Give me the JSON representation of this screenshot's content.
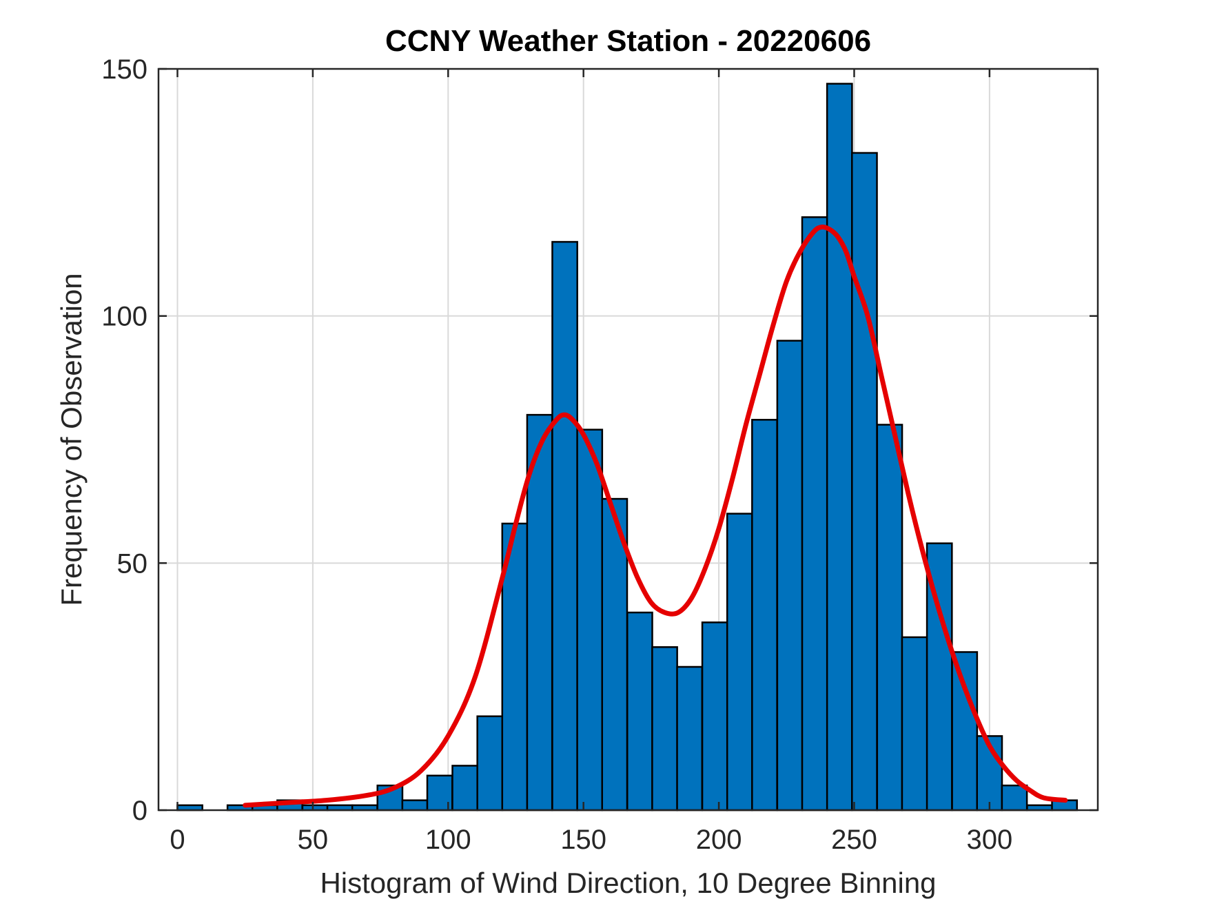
{
  "colors": {
    "bar": "#0072BD",
    "fit": "#E50000"
  },
  "chart_data": {
    "type": "bar",
    "title": "CCNY Weather Station - 20220606",
    "xlabel": "Histogram of Wind Direction, 10 Degree Binning",
    "ylabel": "Frequency of Observation",
    "xlim": [
      -7,
      340
    ],
    "ylim": [
      0,
      150
    ],
    "xticks": [
      0,
      50,
      100,
      150,
      200,
      250,
      300
    ],
    "yticks": [
      0,
      50,
      100,
      150
    ],
    "grid": true,
    "bin_width": 9.23,
    "bin_centers": [
      4.6,
      23.1,
      32.3,
      41.5,
      50.8,
      60.0,
      69.2,
      78.5,
      87.7,
      96.9,
      106.2,
      115.4,
      124.6,
      133.8,
      143.1,
      152.3,
      161.5,
      170.8,
      180.0,
      189.2,
      198.5,
      207.7,
      216.9,
      226.2,
      235.4,
      244.6,
      253.8,
      263.1,
      272.3,
      281.5,
      290.8,
      300.0,
      309.2,
      318.5,
      327.7
    ],
    "values": [
      1,
      1,
      1,
      2,
      1,
      1,
      1,
      5,
      2,
      7,
      9,
      19,
      58,
      80,
      115,
      77,
      63,
      40,
      33,
      29,
      38,
      60,
      79,
      95,
      120,
      147,
      133,
      78,
      35,
      54,
      32,
      15,
      5,
      1,
      2
    ],
    "fit_line": {
      "x": [
        25,
        40,
        55,
        70,
        80,
        90,
        100,
        110,
        120,
        125,
        130,
        135,
        140,
        143,
        146,
        150,
        155,
        160,
        165,
        170,
        175,
        180,
        185,
        190,
        195,
        200,
        205,
        210,
        215,
        220,
        225,
        230,
        235,
        238,
        241,
        244,
        247,
        250,
        255,
        260,
        265,
        270,
        275,
        280,
        285,
        290,
        295,
        300,
        305,
        310,
        315,
        320,
        328
      ],
      "y": [
        1,
        1.5,
        2,
        3,
        4.5,
        8,
        15,
        27,
        47,
        58,
        68,
        75,
        79,
        80,
        79,
        76,
        70,
        62,
        54,
        47,
        42,
        40,
        40,
        43,
        49,
        57,
        67,
        78,
        88,
        98,
        107,
        113,
        117,
        118,
        117.5,
        116,
        113,
        108,
        100,
        88,
        76,
        64,
        53,
        43,
        34,
        26,
        19,
        13,
        9,
        6,
        4,
        2.5,
        2
      ]
    }
  }
}
